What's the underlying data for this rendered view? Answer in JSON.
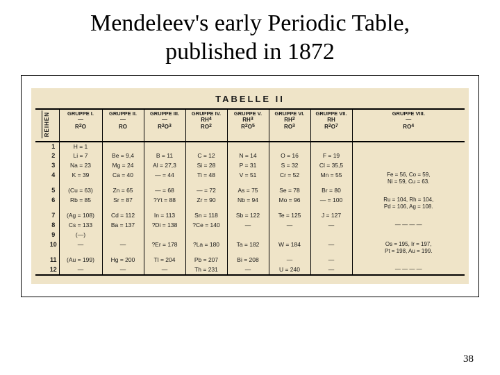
{
  "title_line1": "Mendeleev's early Periodic Table,",
  "title_line2": "published in 1872",
  "page_number": "38",
  "table_bg": "#efe4c8",
  "table": {
    "caption": "TABELLE  II",
    "reihen_label": "REIHEN",
    "groups": [
      {
        "name": "GRUPPE I.",
        "mid": "—",
        "formula": "R²O"
      },
      {
        "name": "GRUPPE II.",
        "mid": "—",
        "formula": "RO"
      },
      {
        "name": "GRUPPE III.",
        "mid": "—",
        "formula": "R²O³"
      },
      {
        "name": "GRUPPE IV.",
        "mid": "RH⁴",
        "formula": "RO²"
      },
      {
        "name": "GRUPPE V.",
        "mid": "RH³",
        "formula": "R²O⁵"
      },
      {
        "name": "GRUPPE VI.",
        "mid": "RH²",
        "formula": "RO³"
      },
      {
        "name": "GRUPPE VII.",
        "mid": "RH",
        "formula": "R²O⁷"
      },
      {
        "name": "GRUPPE VIII.",
        "mid": "—",
        "formula": "RO⁴"
      }
    ],
    "rows": [
      {
        "n": "1",
        "c": [
          "H = 1",
          "",
          "",
          "",
          "",
          "",
          "",
          ""
        ]
      },
      {
        "n": "2",
        "c": [
          "Li = 7",
          "Be = 9,4",
          "B = 11",
          "C = 12",
          "N = 14",
          "O = 16",
          "F = 19",
          ""
        ]
      },
      {
        "n": "3",
        "c": [
          "Na = 23",
          "Mg = 24",
          "Al = 27,3",
          "Si = 28",
          "P = 31",
          "S = 32",
          "Cl = 35,5",
          ""
        ]
      },
      {
        "n": "4",
        "c": [
          "K = 39",
          "Ca = 40",
          "— = 44",
          "Ti = 48",
          "V = 51",
          "Cr = 52",
          "Mn = 55",
          "Fe = 56, Co = 59,\nNi = 59, Cu = 63."
        ]
      },
      {
        "n": "5",
        "c": [
          "(Cu = 63)",
          "Zn = 65",
          "— = 68",
          "— = 72",
          "As = 75",
          "Se = 78",
          "Br = 80",
          ""
        ]
      },
      {
        "n": "6",
        "c": [
          "Rb = 85",
          "Sr = 87",
          "?Yt = 88",
          "Zr = 90",
          "Nb = 94",
          "Mo = 96",
          "— = 100",
          "Ru = 104, Rh = 104,\nPd = 106, Ag = 108."
        ]
      },
      {
        "n": "7",
        "c": [
          "(Ag = 108)",
          "Cd = 112",
          "In = 113",
          "Sn = 118",
          "Sb = 122",
          "Te = 125",
          "J = 127",
          ""
        ]
      },
      {
        "n": "8",
        "c": [
          "Cs = 133",
          "Ba = 137",
          "?Di = 138",
          "?Ce = 140",
          "—",
          "—",
          "—",
          "— — — —"
        ]
      },
      {
        "n": "9",
        "c": [
          "(—)",
          "",
          "",
          "",
          "",
          "",
          "",
          ""
        ]
      },
      {
        "n": "10",
        "c": [
          "—",
          "—",
          "?Er = 178",
          "?La = 180",
          "Ta = 182",
          "W = 184",
          "—",
          "Os = 195, Ir = 197,\nPt = 198, Au = 199."
        ]
      },
      {
        "n": "11",
        "c": [
          "(Au = 199)",
          "Hg = 200",
          "Tl = 204",
          "Pb = 207",
          "Bi = 208",
          "—",
          "—",
          ""
        ]
      },
      {
        "n": "12",
        "c": [
          "—",
          "—",
          "—",
          "Th = 231",
          "—",
          "U = 240",
          "—",
          "— — — —"
        ]
      }
    ]
  }
}
